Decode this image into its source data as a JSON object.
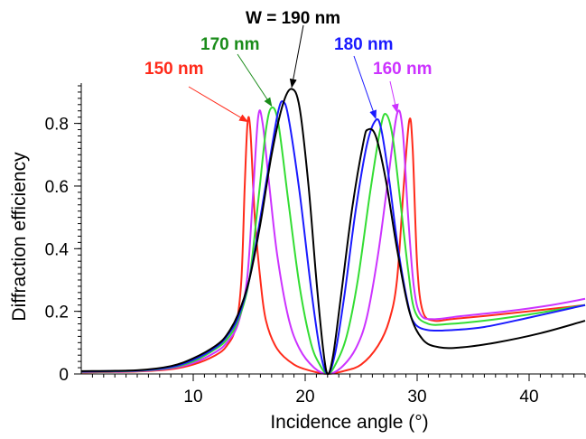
{
  "chart_data": {
    "type": "line",
    "title": "",
    "xlabel": "Incidence angle (°)",
    "ylabel": "Diffraction efficiency",
    "xlim": [
      0,
      45
    ],
    "ylim": [
      0,
      0.92
    ],
    "xticks": [
      10,
      20,
      30,
      40
    ],
    "xtick_labels": [
      "10",
      "20",
      "30",
      "40"
    ],
    "yticks": [
      0,
      0.2,
      0.4,
      0.6,
      0.8
    ],
    "ytick_labels": [
      "0",
      "0.2",
      "0.4",
      "0.6",
      "0.8"
    ],
    "grid": false,
    "legend": "none",
    "series": [
      {
        "name": "150 nm",
        "color": "#ff2a1a",
        "points": [
          [
            0,
            0.005
          ],
          [
            5,
            0.008
          ],
          [
            8,
            0.015
          ],
          [
            10,
            0.03
          ],
          [
            12,
            0.06
          ],
          [
            13,
            0.09
          ],
          [
            13.8,
            0.15
          ],
          [
            14.3,
            0.3
          ],
          [
            14.6,
            0.6
          ],
          [
            14.85,
            0.8
          ],
          [
            15.1,
            0.78
          ],
          [
            15.5,
            0.5
          ],
          [
            16,
            0.3
          ],
          [
            16.5,
            0.17
          ],
          [
            17.5,
            0.08
          ],
          [
            19,
            0.03
          ],
          [
            20.5,
            0.01
          ],
          [
            22,
            0
          ],
          [
            23.5,
            0.01
          ],
          [
            25,
            0.03
          ],
          [
            26.5,
            0.09
          ],
          [
            27.5,
            0.17
          ],
          [
            28.2,
            0.3
          ],
          [
            28.8,
            0.6
          ],
          [
            29.3,
            0.81
          ],
          [
            29.6,
            0.72
          ],
          [
            30,
            0.35
          ],
          [
            30.5,
            0.2
          ],
          [
            31.5,
            0.17
          ],
          [
            33,
            0.175
          ],
          [
            36,
            0.185
          ],
          [
            40,
            0.2
          ],
          [
            45,
            0.22
          ]
        ]
      },
      {
        "name": "160 nm",
        "color": "#cc33ff",
        "points": [
          [
            0,
            0.006
          ],
          [
            5,
            0.009
          ],
          [
            8,
            0.018
          ],
          [
            10,
            0.035
          ],
          [
            12,
            0.07
          ],
          [
            13,
            0.1
          ],
          [
            14,
            0.16
          ],
          [
            14.8,
            0.3
          ],
          [
            15.3,
            0.55
          ],
          [
            15.8,
            0.82
          ],
          [
            16.2,
            0.8
          ],
          [
            16.8,
            0.6
          ],
          [
            17.5,
            0.38
          ],
          [
            18.5,
            0.18
          ],
          [
            19.5,
            0.08
          ],
          [
            20.8,
            0.02
          ],
          [
            22,
            0
          ],
          [
            23.2,
            0.02
          ],
          [
            24.5,
            0.08
          ],
          [
            25.5,
            0.18
          ],
          [
            26.5,
            0.38
          ],
          [
            27.4,
            0.62
          ],
          [
            28.2,
            0.83
          ],
          [
            28.7,
            0.78
          ],
          [
            29.2,
            0.5
          ],
          [
            29.7,
            0.28
          ],
          [
            30.3,
            0.19
          ],
          [
            31.5,
            0.175
          ],
          [
            34,
            0.185
          ],
          [
            38,
            0.2
          ],
          [
            42,
            0.22
          ],
          [
            45,
            0.24
          ]
        ]
      },
      {
        "name": "170 nm",
        "color": "#33dd33",
        "points": [
          [
            0,
            0.007
          ],
          [
            5,
            0.01
          ],
          [
            8,
            0.02
          ],
          [
            10,
            0.04
          ],
          [
            12,
            0.08
          ],
          [
            13,
            0.11
          ],
          [
            14,
            0.17
          ],
          [
            15,
            0.3
          ],
          [
            15.8,
            0.55
          ],
          [
            16.5,
            0.78
          ],
          [
            17,
            0.85
          ],
          [
            17.6,
            0.8
          ],
          [
            18.5,
            0.55
          ],
          [
            19.5,
            0.28
          ],
          [
            20.5,
            0.1
          ],
          [
            21.3,
            0.03
          ],
          [
            22,
            0
          ],
          [
            22.7,
            0.03
          ],
          [
            23.7,
            0.12
          ],
          [
            24.7,
            0.3
          ],
          [
            25.8,
            0.58
          ],
          [
            26.7,
            0.78
          ],
          [
            27.2,
            0.83
          ],
          [
            27.8,
            0.76
          ],
          [
            28.5,
            0.55
          ],
          [
            29.2,
            0.33
          ],
          [
            29.8,
            0.2
          ],
          [
            31,
            0.16
          ],
          [
            33,
            0.16
          ],
          [
            36,
            0.17
          ],
          [
            40,
            0.19
          ],
          [
            45,
            0.22
          ]
        ]
      },
      {
        "name": "180 nm",
        "color": "#1a1aff",
        "points": [
          [
            0,
            0.008
          ],
          [
            5,
            0.011
          ],
          [
            8,
            0.022
          ],
          [
            10,
            0.045
          ],
          [
            12,
            0.085
          ],
          [
            13,
            0.12
          ],
          [
            14,
            0.18
          ],
          [
            15,
            0.3
          ],
          [
            16,
            0.5
          ],
          [
            17,
            0.72
          ],
          [
            17.6,
            0.84
          ],
          [
            18,
            0.87
          ],
          [
            18.5,
            0.82
          ],
          [
            19.5,
            0.58
          ],
          [
            20.5,
            0.28
          ],
          [
            21.3,
            0.08
          ],
          [
            22,
            0
          ],
          [
            22.7,
            0.07
          ],
          [
            23.5,
            0.25
          ],
          [
            24.5,
            0.52
          ],
          [
            25.5,
            0.73
          ],
          [
            26.3,
            0.81
          ],
          [
            26.8,
            0.78
          ],
          [
            27.5,
            0.62
          ],
          [
            28.3,
            0.4
          ],
          [
            29.2,
            0.22
          ],
          [
            29.8,
            0.16
          ],
          [
            31,
            0.14
          ],
          [
            33,
            0.14
          ],
          [
            36,
            0.15
          ],
          [
            40,
            0.18
          ],
          [
            45,
            0.22
          ]
        ]
      },
      {
        "name": "W = 190 nm",
        "color": "#000000",
        "points": [
          [
            0,
            0.009
          ],
          [
            5,
            0.012
          ],
          [
            8,
            0.025
          ],
          [
            10,
            0.05
          ],
          [
            12,
            0.09
          ],
          [
            13,
            0.125
          ],
          [
            14,
            0.19
          ],
          [
            15,
            0.3
          ],
          [
            16,
            0.48
          ],
          [
            17,
            0.7
          ],
          [
            18,
            0.86
          ],
          [
            18.8,
            0.91
          ],
          [
            19.5,
            0.85
          ],
          [
            20.3,
            0.6
          ],
          [
            21,
            0.3
          ],
          [
            21.6,
            0.08
          ],
          [
            22,
            0
          ],
          [
            22.5,
            0.06
          ],
          [
            23.2,
            0.25
          ],
          [
            24.2,
            0.53
          ],
          [
            25.2,
            0.74
          ],
          [
            25.6,
            0.78
          ],
          [
            26.3,
            0.76
          ],
          [
            27.2,
            0.62
          ],
          [
            28.2,
            0.4
          ],
          [
            29.3,
            0.2
          ],
          [
            30.5,
            0.11
          ],
          [
            32,
            0.085
          ],
          [
            34,
            0.085
          ],
          [
            37,
            0.1
          ],
          [
            41,
            0.13
          ],
          [
            45,
            0.17
          ]
        ]
      }
    ],
    "annotations": [
      {
        "text": "150 nm",
        "color": "#ff2a1a",
        "arrow_to": [
          14.85,
          0.8
        ]
      },
      {
        "text": "170 nm",
        "color": "#1a8c1a",
        "arrow_to": [
          17,
          0.85
        ]
      },
      {
        "text": "W = 190 nm",
        "color": "#000000",
        "arrow_to": [
          18.8,
          0.91
        ]
      },
      {
        "text": "180 nm",
        "color": "#1a1aff",
        "arrow_to": [
          26.3,
          0.81
        ]
      },
      {
        "text": "160 nm",
        "color": "#cc33ff",
        "arrow_to": [
          28.2,
          0.83
        ]
      }
    ]
  }
}
